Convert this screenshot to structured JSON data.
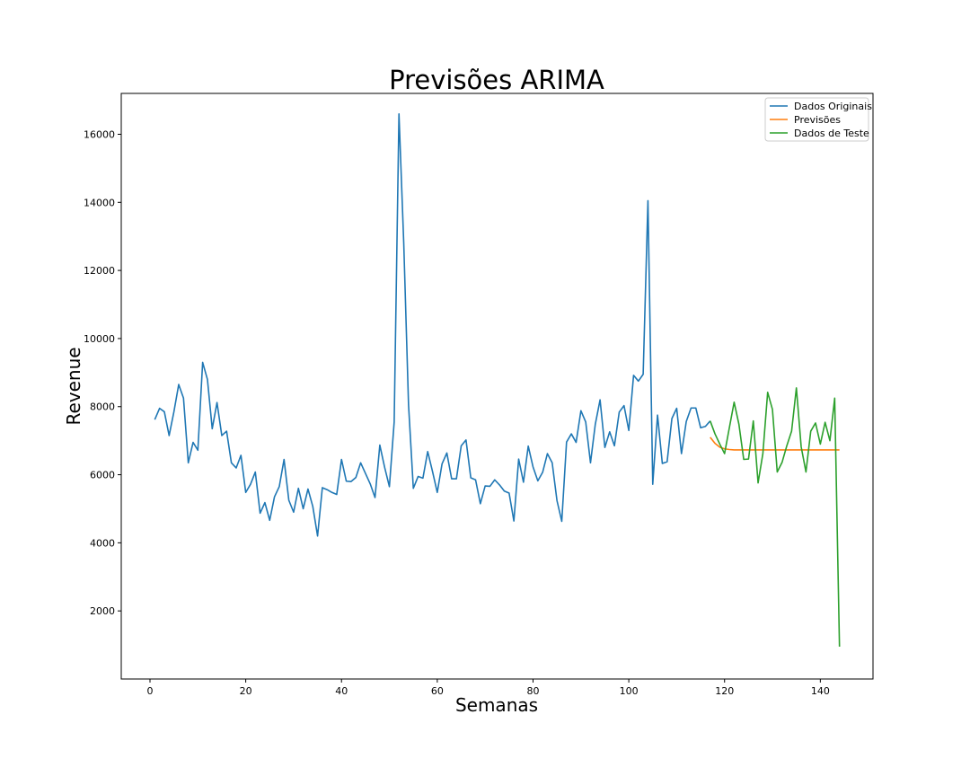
{
  "chart_data": {
    "type": "line",
    "title": "Previsões ARIMA",
    "xlabel": "Semanas",
    "ylabel": "Revenue",
    "xlim": [
      -6,
      151
    ],
    "ylim": [
      0,
      17200
    ],
    "xticks": [
      0,
      20,
      40,
      60,
      80,
      100,
      120,
      140
    ],
    "yticks": [
      2000,
      4000,
      6000,
      8000,
      10000,
      12000,
      14000,
      16000
    ],
    "grid": false,
    "legend_position": "top-right",
    "series": [
      {
        "name": "Dados Originais",
        "color": "#1f77b4",
        "x_start": 1,
        "values": [
          7620,
          7950,
          7850,
          7150,
          7850,
          8650,
          8250,
          6350,
          6950,
          6720,
          9300,
          8800,
          7350,
          8120,
          7150,
          7280,
          6350,
          6200,
          6570,
          5480,
          5720,
          6080,
          4870,
          5180,
          4660,
          5350,
          5650,
          6450,
          5250,
          4900,
          5600,
          5000,
          5580,
          5070,
          4200,
          5620,
          5560,
          5480,
          5420,
          6450,
          5810,
          5800,
          5920,
          6350,
          6040,
          5730,
          5330,
          6870,
          6220,
          5650,
          7550,
          16600,
          12800,
          8050,
          5600,
          5950,
          5900,
          6680,
          6100,
          5480,
          6320,
          6640,
          5880,
          5880,
          6850,
          7020,
          5910,
          5850,
          5150,
          5670,
          5660,
          5850,
          5700,
          5520,
          5460,
          4640,
          6460,
          5780,
          6840,
          6230,
          5820,
          6070,
          6620,
          6350,
          5240,
          4630,
          6960,
          7200,
          6950,
          7880,
          7550,
          6350,
          7480,
          8200,
          6800,
          7260,
          6850,
          7840,
          8030,
          7300,
          8920,
          8750,
          8950,
          14050,
          5720,
          7750,
          6330,
          6380,
          7650,
          7950,
          6620,
          7560,
          7960,
          7960,
          7380,
          7420,
          7580
        ]
      },
      {
        "name": "Previsões",
        "color": "#ff7f0e",
        "x_start": 117,
        "values": [
          7100,
          6920,
          6810,
          6760,
          6740,
          6730,
          6730,
          6730,
          6730,
          6730,
          6730,
          6730,
          6730,
          6730,
          6730,
          6730,
          6730,
          6730,
          6730,
          6730,
          6730,
          6730,
          6730,
          6730,
          6730,
          6730,
          6730,
          6730
        ]
      },
      {
        "name": "Dados de Teste",
        "color": "#2ca02c",
        "x_start": 117,
        "values": [
          7580,
          7200,
          6900,
          6620,
          7380,
          8130,
          7480,
          6450,
          6460,
          7580,
          5760,
          6620,
          8420,
          7920,
          6080,
          6360,
          6850,
          7280,
          8550,
          6820,
          6080,
          7280,
          7520,
          6900,
          7540,
          7000,
          8250,
          950
        ]
      }
    ]
  }
}
